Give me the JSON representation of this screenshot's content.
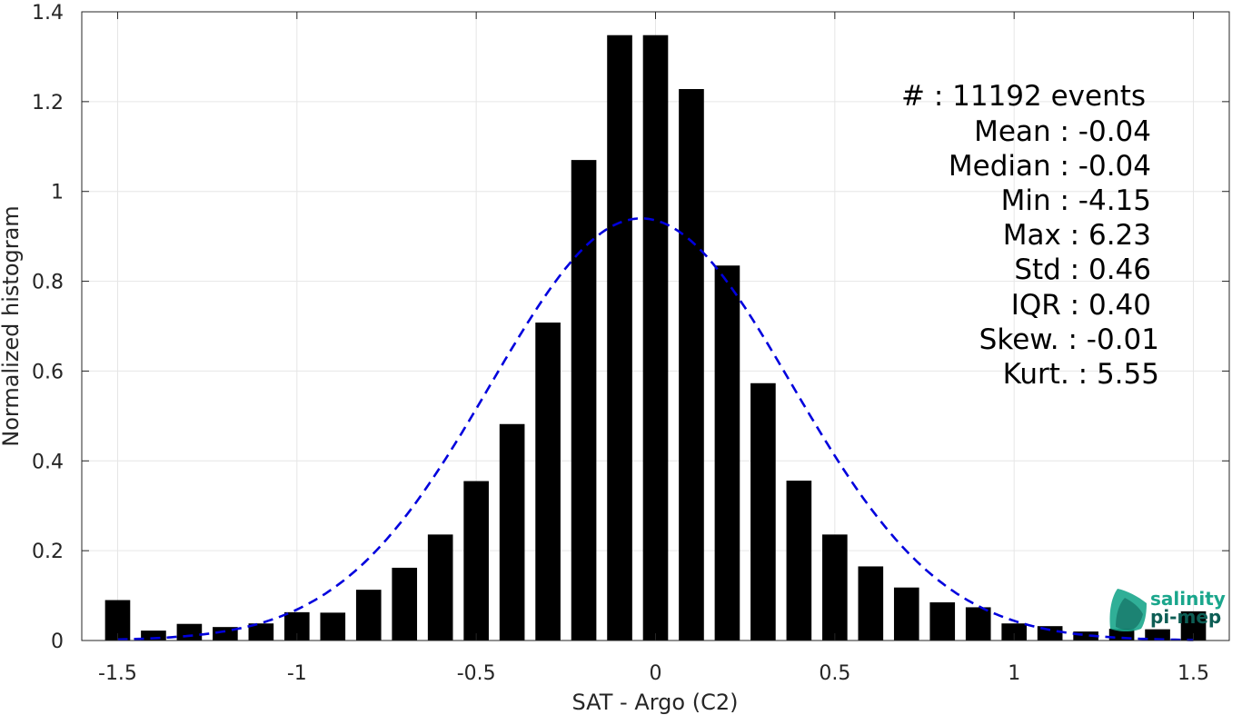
{
  "chart_data": {
    "type": "bar",
    "xlabel": "SAT - Argo (C2)",
    "ylabel": "Normalized histogram",
    "xlim": [
      -1.6,
      1.6
    ],
    "ylim": [
      0,
      1.4
    ],
    "xticks": [
      -1.5,
      -1,
      -0.5,
      0,
      0.5,
      1,
      1.5
    ],
    "xtick_labels": [
      "-1.5",
      "-1",
      "-0.5",
      "0",
      "0.5",
      "1",
      "1.5"
    ],
    "yticks": [
      0,
      0.2,
      0.4,
      0.6,
      0.8,
      1,
      1.2,
      1.4
    ],
    "ytick_labels": [
      "0",
      "0.2",
      "0.4",
      "0.6",
      "0.8",
      "1",
      "1.2",
      "1.4"
    ],
    "grid": true,
    "bar_color": "#000000",
    "bar_width": 0.07,
    "bars": {
      "x": [
        -1.5,
        -1.4,
        -1.3,
        -1.2,
        -1.1,
        -1.0,
        -0.9,
        -0.8,
        -0.7,
        -0.6,
        -0.5,
        -0.4,
        -0.3,
        -0.2,
        -0.1,
        0.0,
        0.1,
        0.2,
        0.3,
        0.4,
        0.5,
        0.6,
        0.7,
        0.8,
        0.9,
        1.0,
        1.1,
        1.2,
        1.3,
        1.4,
        1.5
      ],
      "values": [
        0.09,
        0.022,
        0.037,
        0.03,
        0.038,
        0.063,
        0.062,
        0.113,
        0.162,
        0.236,
        0.355,
        0.482,
        0.708,
        1.07,
        1.348,
        1.348,
        1.228,
        0.835,
        0.573,
        0.356,
        0.236,
        0.165,
        0.118,
        0.085,
        0.074,
        0.038,
        0.032,
        0.02,
        0.026,
        0.025,
        0.065
      ]
    },
    "fit_curve": {
      "style": "dashed",
      "color": "#0000dd",
      "mean": -0.04,
      "std": 0.42,
      "peak": 0.94,
      "x_range": [
        -1.5,
        1.5
      ]
    }
  },
  "stats": {
    "events": "#  : 11192 events",
    "mean": "Mean : -0.04",
    "median": "Median : -0.04",
    "min": "Min : -4.15",
    "max": "Max : 6.23",
    "std": "Std : 0.46",
    "iqr": "IQR : 0.40",
    "skew": "Skew. : -0.01",
    "kurt": "Kurt. : 5.55"
  },
  "logo": {
    "line1": "salinity",
    "line2": "pi-mep",
    "color1": "#1aa68c",
    "color2": "#0d5e55"
  }
}
